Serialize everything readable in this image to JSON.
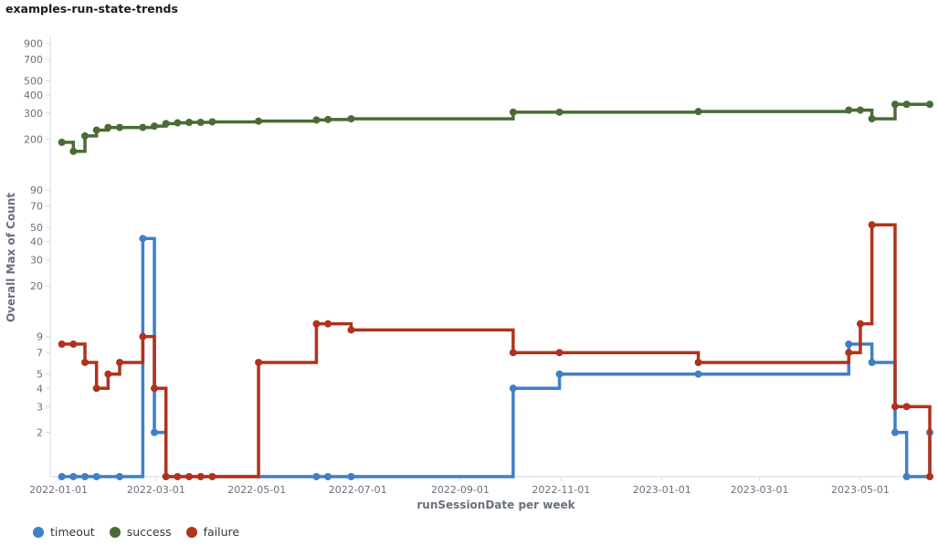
{
  "title": "examples-run-state-trends",
  "chart_data": {
    "type": "line",
    "step": "after",
    "title": "examples-run-state-trends",
    "xlabel": "runSessionDate per week",
    "ylabel": "Overall Max of Count",
    "yscale": "log",
    "ylim": [
      1,
      1000
    ],
    "xlim": [
      "2021-12-27",
      "2023-06-12"
    ],
    "x_ticks": [
      "2022-01-01",
      "2022-03-01",
      "2022-05-01",
      "2022-07-01",
      "2022-09-01",
      "2022-11-01",
      "2023-01-01",
      "2023-03-01",
      "2023-05-01"
    ],
    "y_ticks": [
      2,
      3,
      4,
      5,
      7,
      9,
      20,
      30,
      40,
      50,
      70,
      90,
      200,
      300,
      400,
      500,
      700,
      900
    ],
    "grid": false,
    "legend_position": "bottom-left",
    "series": [
      {
        "name": "timeout",
        "color": "#3f7fc6",
        "points": [
          [
            "2022-01-03",
            1
          ],
          [
            "2022-01-10",
            1
          ],
          [
            "2022-01-17",
            1
          ],
          [
            "2022-01-24",
            1
          ],
          [
            "2022-02-07",
            1
          ],
          [
            "2022-02-21",
            42
          ],
          [
            "2022-02-28",
            2
          ],
          [
            "2022-03-07",
            1
          ],
          [
            "2022-06-06",
            1
          ],
          [
            "2022-06-13",
            1
          ],
          [
            "2022-06-27",
            1
          ],
          [
            "2022-10-03",
            4
          ],
          [
            "2022-10-31",
            5
          ],
          [
            "2023-01-23",
            5
          ],
          [
            "2023-04-24",
            8
          ],
          [
            "2023-05-08",
            6
          ],
          [
            "2023-05-22",
            2
          ],
          [
            "2023-05-29",
            1
          ],
          [
            "2023-06-12",
            2
          ]
        ]
      },
      {
        "name": "success",
        "color": "#4a6b35",
        "points": [
          [
            "2022-01-03",
            190
          ],
          [
            "2022-01-10",
            165
          ],
          [
            "2022-01-17",
            210
          ],
          [
            "2022-01-24",
            230
          ],
          [
            "2022-01-31",
            240
          ],
          [
            "2022-02-07",
            240
          ],
          [
            "2022-02-21",
            240
          ],
          [
            "2022-02-28",
            245
          ],
          [
            "2022-03-07",
            255
          ],
          [
            "2022-03-14",
            258
          ],
          [
            "2022-03-21",
            260
          ],
          [
            "2022-03-28",
            260
          ],
          [
            "2022-04-04",
            262
          ],
          [
            "2022-05-02",
            265
          ],
          [
            "2022-06-06",
            270
          ],
          [
            "2022-06-13",
            272
          ],
          [
            "2022-06-27",
            275
          ],
          [
            "2022-10-03",
            305
          ],
          [
            "2022-10-31",
            305
          ],
          [
            "2023-01-23",
            308
          ],
          [
            "2023-04-24",
            315
          ],
          [
            "2023-05-01",
            315
          ],
          [
            "2023-05-08",
            275
          ],
          [
            "2023-05-22",
            345
          ],
          [
            "2023-05-29",
            345
          ],
          [
            "2023-06-12",
            345
          ]
        ]
      },
      {
        "name": "failure",
        "color": "#b0321c",
        "points": [
          [
            "2022-01-03",
            8
          ],
          [
            "2022-01-10",
            8
          ],
          [
            "2022-01-17",
            6
          ],
          [
            "2022-01-24",
            4
          ],
          [
            "2022-01-31",
            5
          ],
          [
            "2022-02-07",
            6
          ],
          [
            "2022-02-21",
            9
          ],
          [
            "2022-02-28",
            4
          ],
          [
            "2022-03-07",
            1
          ],
          [
            "2022-03-14",
            1
          ],
          [
            "2022-03-21",
            1
          ],
          [
            "2022-03-28",
            1
          ],
          [
            "2022-04-04",
            1
          ],
          [
            "2022-05-02",
            6
          ],
          [
            "2022-06-06",
            11
          ],
          [
            "2022-06-13",
            11
          ],
          [
            "2022-06-27",
            10
          ],
          [
            "2022-10-03",
            7
          ],
          [
            "2022-10-31",
            7
          ],
          [
            "2023-01-23",
            6
          ],
          [
            "2023-04-24",
            7
          ],
          [
            "2023-05-01",
            11
          ],
          [
            "2023-05-08",
            52
          ],
          [
            "2023-05-22",
            3
          ],
          [
            "2023-05-29",
            3
          ],
          [
            "2023-06-12",
            1
          ]
        ]
      }
    ]
  }
}
